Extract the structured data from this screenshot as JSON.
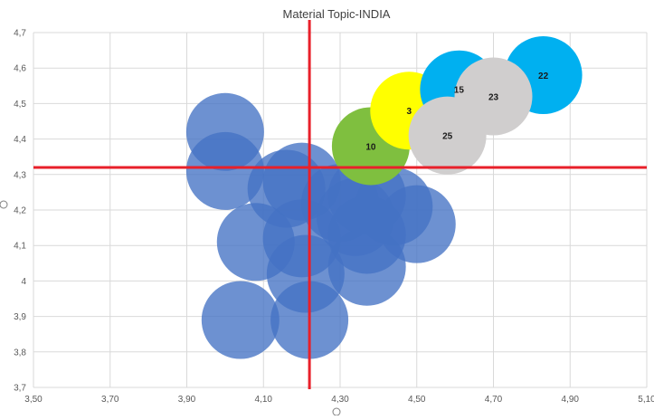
{
  "chart_data": {
    "type": "bubble",
    "title": "Material Topic-INDIA",
    "xlim": [
      3.5,
      5.1
    ],
    "ylim": [
      3.7,
      4.7
    ],
    "x_ticks": [
      3.5,
      3.7,
      3.9,
      4.1,
      4.3,
      4.5,
      4.7,
      4.9,
      5.1
    ],
    "x_tick_labels": [
      "3,50",
      "3,70",
      "3,90",
      "4,10",
      "4,30",
      "4,50",
      "4,70",
      "4,90",
      "5,10"
    ],
    "y_ticks": [
      3.7,
      3.8,
      3.9,
      4.0,
      4.1,
      4.2,
      4.3,
      4.4,
      4.5,
      4.6,
      4.7
    ],
    "y_tick_labels": [
      "3,7",
      "3,8",
      "3,9",
      "4",
      "4,1",
      "4,2",
      "4,3",
      "4,4",
      "4,5",
      "4,6",
      "4,7"
    ],
    "grid": true,
    "reference_lines": {
      "x": 4.22,
      "y": 4.32,
      "color": "#e8202a"
    },
    "colors": {
      "blue": "#4472c4",
      "green": "#7fbf3f",
      "yellow": "#ffff00",
      "cyan": "#00b0f0",
      "gray": "#d0cece"
    },
    "bubbles": [
      {
        "x": 4.0,
        "y": 4.42,
        "color": "blue",
        "label": ""
      },
      {
        "x": 4.0,
        "y": 4.31,
        "color": "blue",
        "label": ""
      },
      {
        "x": 4.08,
        "y": 4.11,
        "color": "blue",
        "label": ""
      },
      {
        "x": 4.04,
        "y": 3.89,
        "color": "blue",
        "label": ""
      },
      {
        "x": 4.16,
        "y": 4.26,
        "color": "blue",
        "label": ""
      },
      {
        "x": 4.2,
        "y": 4.28,
        "color": "blue",
        "label": ""
      },
      {
        "x": 4.2,
        "y": 4.12,
        "color": "blue",
        "label": ""
      },
      {
        "x": 4.21,
        "y": 4.02,
        "color": "blue",
        "label": ""
      },
      {
        "x": 4.22,
        "y": 3.89,
        "color": "blue",
        "label": ""
      },
      {
        "x": 4.3,
        "y": 4.22,
        "color": "blue",
        "label": ""
      },
      {
        "x": 4.34,
        "y": 4.18,
        "color": "blue",
        "label": ""
      },
      {
        "x": 4.37,
        "y": 4.24,
        "color": "blue",
        "label": ""
      },
      {
        "x": 4.37,
        "y": 4.13,
        "color": "blue",
        "label": ""
      },
      {
        "x": 4.37,
        "y": 4.04,
        "color": "blue",
        "label": ""
      },
      {
        "x": 4.44,
        "y": 4.21,
        "color": "blue",
        "label": ""
      },
      {
        "x": 4.5,
        "y": 4.16,
        "color": "blue",
        "label": ""
      },
      {
        "x": 4.38,
        "y": 4.38,
        "color": "green",
        "label": "10"
      },
      {
        "x": 4.48,
        "y": 4.48,
        "color": "yellow",
        "label": "3"
      },
      {
        "x": 4.61,
        "y": 4.54,
        "color": "cyan",
        "label": "15"
      },
      {
        "x": 4.83,
        "y": 4.58,
        "color": "cyan",
        "label": "22"
      },
      {
        "x": 4.7,
        "y": 4.52,
        "color": "gray",
        "label": "23"
      },
      {
        "x": 4.58,
        "y": 4.41,
        "color": "gray",
        "label": "25"
      }
    ]
  }
}
